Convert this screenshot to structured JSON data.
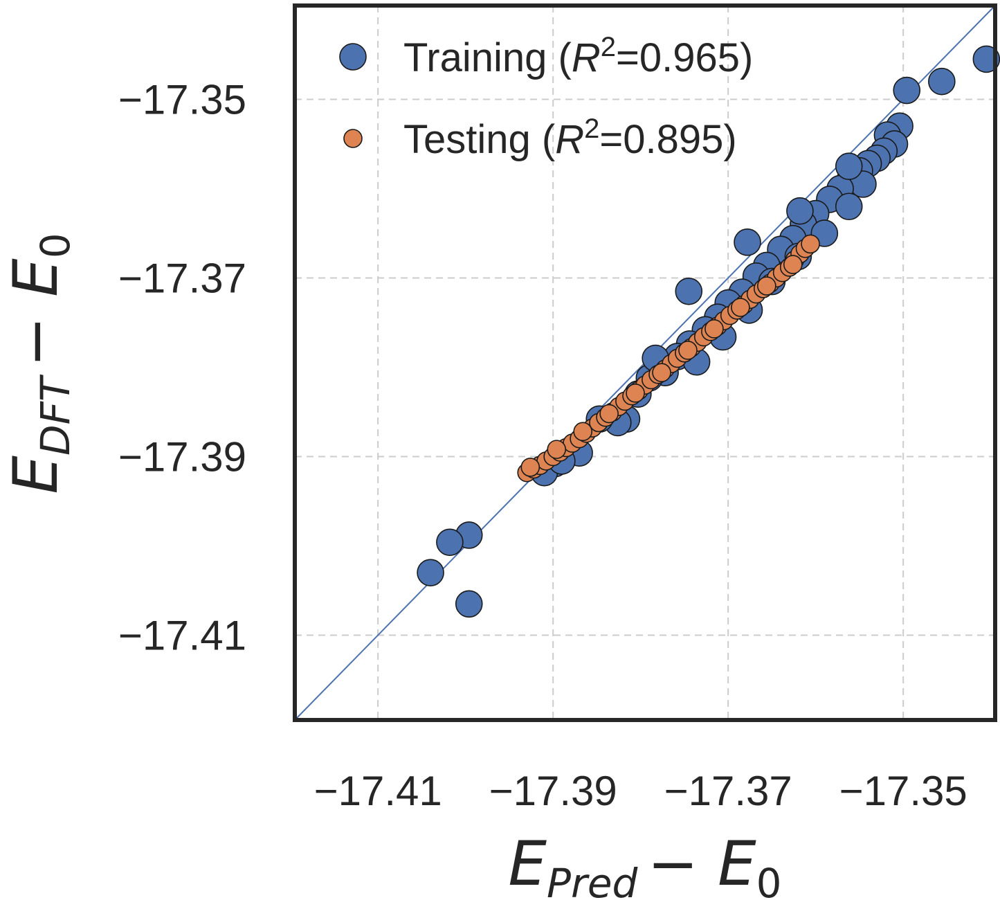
{
  "chart_data": {
    "type": "scatter",
    "xlim": [
      -17.4195,
      -17.3395
    ],
    "ylim": [
      -17.4195,
      -17.3395
    ],
    "x_ticks": [
      "−17.41",
      "−17.39",
      "−17.37",
      "−17.35"
    ],
    "y_ticks": [
      "−17.35",
      "−17.37",
      "−17.39",
      "−17.41"
    ],
    "x_tick_values": [
      -17.41,
      -17.39,
      -17.37,
      -17.35
    ],
    "y_tick_values": [
      -17.35,
      -17.37,
      -17.39,
      -17.41
    ],
    "xlabel": {
      "main": "E",
      "sub": "Pred",
      "rest": "− E",
      "rest_sub": "0"
    },
    "ylabel": {
      "main": "E",
      "sub": "DFT",
      "rest": "− E",
      "rest_sub": "0"
    },
    "grid": true,
    "legend_position": "upper-left",
    "identity_line": true,
    "series": [
      {
        "name": "Training",
        "legend": {
          "prefix": "Training (",
          "r": "R",
          "sup": "2",
          "suffix": "=0.965)"
        },
        "color": "#4c72b0",
        "points": [
          [
            -17.3405,
            -17.3455
          ],
          [
            -17.3456,
            -17.348
          ],
          [
            -17.3496,
            -17.349
          ],
          [
            -17.3504,
            -17.353
          ],
          [
            -17.3518,
            -17.354
          ],
          [
            -17.351,
            -17.355
          ],
          [
            -17.3522,
            -17.3558
          ],
          [
            -17.353,
            -17.3566
          ],
          [
            -17.354,
            -17.3572
          ],
          [
            -17.355,
            -17.358
          ],
          [
            -17.356,
            -17.3588
          ],
          [
            -17.3546,
            -17.3595
          ],
          [
            -17.3572,
            -17.36
          ],
          [
            -17.3584,
            -17.3612
          ],
          [
            -17.3562,
            -17.362
          ],
          [
            -17.36,
            -17.3628
          ],
          [
            -17.3614,
            -17.364
          ],
          [
            -17.359,
            -17.365
          ],
          [
            -17.3626,
            -17.3656
          ],
          [
            -17.364,
            -17.3668
          ],
          [
            -17.362,
            -17.3676
          ],
          [
            -17.3656,
            -17.3686
          ],
          [
            -17.3668,
            -17.3698
          ],
          [
            -17.365,
            -17.3704
          ],
          [
            -17.3684,
            -17.3716
          ],
          [
            -17.37,
            -17.3728
          ],
          [
            -17.3676,
            -17.3736
          ],
          [
            -17.3712,
            -17.3744
          ],
          [
            -17.3726,
            -17.3758
          ],
          [
            -17.3706,
            -17.3766
          ],
          [
            -17.3744,
            -17.3774
          ],
          [
            -17.3758,
            -17.3788
          ],
          [
            -17.3736,
            -17.3794
          ],
          [
            -17.3772,
            -17.3806
          ],
          [
            -17.379,
            -17.3812
          ],
          [
            -17.3803,
            -17.383
          ],
          [
            -17.3783,
            -17.379
          ],
          [
            -17.3816,
            -17.3858
          ],
          [
            -17.3826,
            -17.3862
          ],
          [
            -17.3847,
            -17.3858
          ],
          [
            -17.387,
            -17.3896
          ],
          [
            -17.3898,
            -17.3908
          ],
          [
            -17.391,
            -17.3918
          ],
          [
            -17.389,
            -17.3905
          ],
          [
            -17.3996,
            -17.3988
          ],
          [
            -17.4018,
            -17.3996
          ],
          [
            -17.404,
            -17.403
          ],
          [
            -17.3996,
            -17.4065
          ],
          [
            -17.3745,
            -17.3715
          ],
          [
            -17.3678,
            -17.366
          ],
          [
            -17.3618,
            -17.3625
          ],
          [
            -17.3562,
            -17.3575
          ]
        ]
      },
      {
        "name": "Testing",
        "legend": {
          "prefix": "Testing (",
          "r": "R",
          "sup": "2",
          "suffix": "=0.895)"
        },
        "color": "#dd8452",
        "points": [
          [
            -17.393,
            -17.3918
          ],
          [
            -17.3922,
            -17.3914
          ],
          [
            -17.3915,
            -17.391
          ],
          [
            -17.3908,
            -17.3905
          ],
          [
            -17.39,
            -17.39
          ],
          [
            -17.3892,
            -17.3895
          ],
          [
            -17.3885,
            -17.389
          ],
          [
            -17.3878,
            -17.3885
          ],
          [
            -17.387,
            -17.388
          ],
          [
            -17.3862,
            -17.3874
          ],
          [
            -17.3855,
            -17.3868
          ],
          [
            -17.3848,
            -17.3862
          ],
          [
            -17.384,
            -17.3856
          ],
          [
            -17.3832,
            -17.385
          ],
          [
            -17.3825,
            -17.3844
          ],
          [
            -17.3818,
            -17.3838
          ],
          [
            -17.381,
            -17.3832
          ],
          [
            -17.3802,
            -17.3826
          ],
          [
            -17.3795,
            -17.382
          ],
          [
            -17.3788,
            -17.3814
          ],
          [
            -17.378,
            -17.3808
          ],
          [
            -17.3772,
            -17.3802
          ],
          [
            -17.3765,
            -17.3796
          ],
          [
            -17.3758,
            -17.379
          ],
          [
            -17.375,
            -17.3784
          ],
          [
            -17.3742,
            -17.3778
          ],
          [
            -17.3735,
            -17.3772
          ],
          [
            -17.3728,
            -17.3766
          ],
          [
            -17.372,
            -17.376
          ],
          [
            -17.3712,
            -17.3754
          ],
          [
            -17.3705,
            -17.3748
          ],
          [
            -17.3698,
            -17.3742
          ],
          [
            -17.369,
            -17.3736
          ],
          [
            -17.3682,
            -17.373
          ],
          [
            -17.3675,
            -17.3724
          ],
          [
            -17.3668,
            -17.3718
          ],
          [
            -17.366,
            -17.3712
          ],
          [
            -17.3652,
            -17.3706
          ],
          [
            -17.3645,
            -17.37
          ],
          [
            -17.3638,
            -17.3694
          ],
          [
            -17.363,
            -17.3688
          ],
          [
            -17.3624,
            -17.368
          ],
          [
            -17.3618,
            -17.3673
          ],
          [
            -17.3612,
            -17.3667
          ],
          [
            -17.3606,
            -17.3662
          ],
          [
            -17.3926,
            -17.3912
          ],
          [
            -17.3896,
            -17.3892
          ],
          [
            -17.3866,
            -17.3872
          ],
          [
            -17.3836,
            -17.3852
          ],
          [
            -17.3806,
            -17.3829
          ],
          [
            -17.3776,
            -17.3806
          ],
          [
            -17.3746,
            -17.3781
          ],
          [
            -17.3716,
            -17.3757
          ],
          [
            -17.3686,
            -17.3733
          ],
          [
            -17.3656,
            -17.3709
          ],
          [
            -17.3626,
            -17.3685
          ]
        ]
      }
    ]
  }
}
